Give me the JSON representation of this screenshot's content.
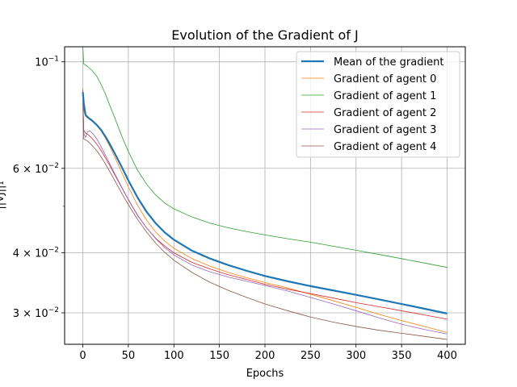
{
  "chart_data": {
    "type": "line",
    "title": "Evolution of the Gradient of J",
    "xlabel": "Epochs",
    "ylabel": "||∇J||₁",
    "yscale": "log",
    "xlim": [
      -20,
      420
    ],
    "ylim": [
      0.0258,
      0.1075
    ],
    "grid": "x and y major",
    "legend_position": "top-right",
    "x_ticks": [
      0,
      50,
      100,
      150,
      200,
      250,
      300,
      350,
      400
    ],
    "x_tick_labels": [
      "0",
      "50",
      "100",
      "150",
      "200",
      "250",
      "300",
      "350",
      "400"
    ],
    "y_ticks": [
      {
        "value": 0.1,
        "base": "10",
        "exp": "−1"
      },
      {
        "value": 0.06,
        "base": "6 × 10",
        "exp": "−2"
      },
      {
        "value": 0.04,
        "base": "4 × 10",
        "exp": "−2"
      },
      {
        "value": 0.03,
        "base": "3 × 10",
        "exp": "−2"
      }
    ],
    "y_minor_ticks": [
      0.05
    ],
    "series": [
      {
        "name": "Mean of the gradient",
        "color": "#1f77b4",
        "width": 2.2,
        "points": [
          [
            0,
            0.0865
          ],
          [
            1,
            0.082
          ],
          [
            3,
            0.0775
          ],
          [
            6,
            0.0765
          ],
          [
            10,
            0.0755
          ],
          [
            15,
            0.074
          ],
          [
            20,
            0.0722
          ],
          [
            25,
            0.0698
          ],
          [
            30,
            0.0672
          ],
          [
            35,
            0.0645
          ],
          [
            40,
            0.0618
          ],
          [
            45,
            0.0592
          ],
          [
            50,
            0.0566
          ],
          [
            60,
            0.0522
          ],
          [
            70,
            0.0487
          ],
          [
            80,
            0.0461
          ],
          [
            90,
            0.0441
          ],
          [
            100,
            0.0426
          ],
          [
            120,
            0.0404
          ],
          [
            140,
            0.0389
          ],
          [
            160,
            0.0377
          ],
          [
            180,
            0.0367
          ],
          [
            200,
            0.0358
          ],
          [
            225,
            0.0349
          ],
          [
            250,
            0.0341
          ],
          [
            275,
            0.0334
          ],
          [
            300,
            0.0327
          ],
          [
            325,
            0.032
          ],
          [
            350,
            0.0313
          ],
          [
            375,
            0.0306
          ],
          [
            400,
            0.0299
          ]
        ]
      },
      {
        "name": "Gradient of agent 0",
        "color": "#ff7f0e",
        "width": 0.8,
        "points": [
          [
            0,
            0.088
          ],
          [
            1,
            0.079
          ],
          [
            3,
            0.077
          ],
          [
            6,
            0.0762
          ],
          [
            10,
            0.0752
          ],
          [
            15,
            0.0737
          ],
          [
            20,
            0.0718
          ],
          [
            25,
            0.0692
          ],
          [
            30,
            0.0664
          ],
          [
            35,
            0.0634
          ],
          [
            40,
            0.0604
          ],
          [
            45,
            0.0576
          ],
          [
            50,
            0.0549
          ],
          [
            60,
            0.0503
          ],
          [
            70,
            0.0468
          ],
          [
            80,
            0.0442
          ],
          [
            90,
            0.0423
          ],
          [
            100,
            0.0409
          ],
          [
            120,
            0.0389
          ],
          [
            140,
            0.0375
          ],
          [
            160,
            0.0364
          ],
          [
            180,
            0.0355
          ],
          [
            200,
            0.0347
          ],
          [
            225,
            0.0338
          ],
          [
            250,
            0.0328
          ],
          [
            275,
            0.0318
          ],
          [
            300,
            0.0308
          ],
          [
            325,
            0.0298
          ],
          [
            350,
            0.0289
          ],
          [
            375,
            0.0281
          ],
          [
            400,
            0.0273
          ]
        ]
      },
      {
        "name": "Gradient of agent 1",
        "color": "#2ca02c",
        "width": 0.8,
        "points": [
          [
            0,
            0.1075
          ],
          [
            1,
            0.099
          ],
          [
            3,
            0.0985
          ],
          [
            6,
            0.0975
          ],
          [
            10,
            0.096
          ],
          [
            15,
            0.0935
          ],
          [
            20,
            0.0898
          ],
          [
            25,
            0.0855
          ],
          [
            30,
            0.0808
          ],
          [
            35,
            0.0765
          ],
          [
            40,
            0.0722
          ],
          [
            45,
            0.0684
          ],
          [
            50,
            0.065
          ],
          [
            60,
            0.0595
          ],
          [
            70,
            0.0556
          ],
          [
            80,
            0.0528
          ],
          [
            90,
            0.0508
          ],
          [
            100,
            0.0494
          ],
          [
            120,
            0.0475
          ],
          [
            140,
            0.0461
          ],
          [
            160,
            0.0451
          ],
          [
            180,
            0.0443
          ],
          [
            200,
            0.0436
          ],
          [
            225,
            0.0428
          ],
          [
            250,
            0.0421
          ],
          [
            275,
            0.0413
          ],
          [
            300,
            0.0405
          ],
          [
            325,
            0.0397
          ],
          [
            350,
            0.0389
          ],
          [
            375,
            0.0381
          ],
          [
            400,
            0.0373
          ]
        ]
      },
      {
        "name": "Gradient of agent 2",
        "color": "#d62728",
        "width": 0.8,
        "points": [
          [
            0,
            0.083
          ],
          [
            1,
            0.072
          ],
          [
            3,
            0.071
          ],
          [
            6,
            0.0705
          ],
          [
            10,
            0.0693
          ],
          [
            15,
            0.0675
          ],
          [
            20,
            0.0654
          ],
          [
            25,
            0.063
          ],
          [
            30,
            0.0606
          ],
          [
            35,
            0.0582
          ],
          [
            40,
            0.0559
          ],
          [
            45,
            0.0537
          ],
          [
            50,
            0.0516
          ],
          [
            60,
            0.0479
          ],
          [
            70,
            0.0451
          ],
          [
            80,
            0.0429
          ],
          [
            90,
            0.0413
          ],
          [
            100,
            0.04
          ],
          [
            120,
            0.0382
          ],
          [
            140,
            0.037
          ],
          [
            160,
            0.036
          ],
          [
            180,
            0.0352
          ],
          [
            200,
            0.0344
          ],
          [
            225,
            0.0336
          ],
          [
            250,
            0.0329
          ],
          [
            275,
            0.0322
          ],
          [
            300,
            0.0315
          ],
          [
            325,
            0.0309
          ],
          [
            350,
            0.0303
          ],
          [
            375,
            0.0297
          ],
          [
            400,
            0.0291
          ]
        ]
      },
      {
        "name": "Gradient of agent 3",
        "color": "#9467bd",
        "width": 0.8,
        "points": [
          [
            0,
            0.086
          ],
          [
            1,
            0.071
          ],
          [
            3,
            0.0695
          ],
          [
            5,
            0.0715
          ],
          [
            8,
            0.0718
          ],
          [
            12,
            0.0705
          ],
          [
            16,
            0.0688
          ],
          [
            20,
            0.0666
          ],
          [
            25,
            0.0638
          ],
          [
            30,
            0.0611
          ],
          [
            35,
            0.0585
          ],
          [
            40,
            0.0561
          ],
          [
            45,
            0.0538
          ],
          [
            50,
            0.0517
          ],
          [
            60,
            0.048
          ],
          [
            70,
            0.0451
          ],
          [
            80,
            0.0428
          ],
          [
            90,
            0.041
          ],
          [
            100,
            0.0396
          ],
          [
            120,
            0.0377
          ],
          [
            140,
            0.0365
          ],
          [
            160,
            0.0356
          ],
          [
            180,
            0.0349
          ],
          [
            200,
            0.0342
          ],
          [
            225,
            0.0333
          ],
          [
            250,
            0.0323
          ],
          [
            275,
            0.0313
          ],
          [
            300,
            0.0303
          ],
          [
            325,
            0.0293
          ],
          [
            350,
            0.0284
          ],
          [
            375,
            0.0277
          ],
          [
            400,
            0.0271
          ]
        ]
      },
      {
        "name": "Gradient of agent 4",
        "color": "#8c564b",
        "width": 0.8,
        "points": [
          [
            0,
            0.0875
          ],
          [
            1,
            0.069
          ],
          [
            3,
            0.0688
          ],
          [
            6,
            0.0682
          ],
          [
            10,
            0.067
          ],
          [
            15,
            0.0654
          ],
          [
            20,
            0.0634
          ],
          [
            25,
            0.0612
          ],
          [
            30,
            0.0589
          ],
          [
            35,
            0.0566
          ],
          [
            40,
            0.0544
          ],
          [
            45,
            0.0523
          ],
          [
            50,
            0.0504
          ],
          [
            60,
            0.047
          ],
          [
            70,
            0.0442
          ],
          [
            80,
            0.0419
          ],
          [
            90,
            0.0401
          ],
          [
            100,
            0.0386
          ],
          [
            120,
            0.0364
          ],
          [
            140,
            0.0347
          ],
          [
            160,
            0.0334
          ],
          [
            180,
            0.0323
          ],
          [
            200,
            0.0313
          ],
          [
            225,
            0.0303
          ],
          [
            250,
            0.0294
          ],
          [
            275,
            0.0287
          ],
          [
            300,
            0.0281
          ],
          [
            325,
            0.0276
          ],
          [
            350,
            0.0272
          ],
          [
            375,
            0.0268
          ],
          [
            400,
            0.0264
          ]
        ]
      }
    ]
  }
}
